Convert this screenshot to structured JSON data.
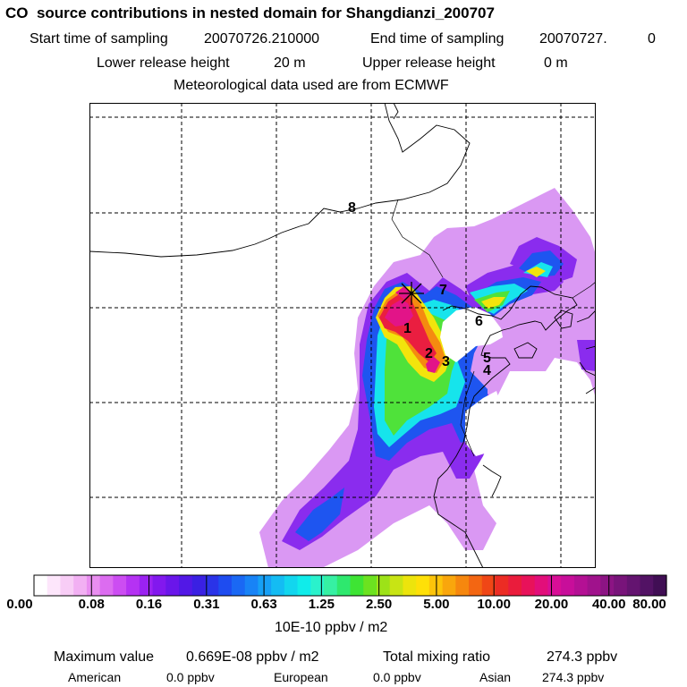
{
  "header": {
    "title": "CO  source contributions in nested domain for Shangdianzi_200707",
    "start_label": "Start time of sampling",
    "start_value": "20070726.210000",
    "end_label": "End time of sampling",
    "end_value": "20070727.",
    "end_extra": "0",
    "lower_label": "Lower release height",
    "lower_value": "20 m",
    "upper_label": "Upper release height",
    "upper_value": "0 m",
    "met_line": "Meteorological data used are from ECMWF"
  },
  "map": {
    "site_marker": "star-marker-icon",
    "labels": [
      "1",
      "2",
      "3",
      "4",
      "5",
      "6",
      "7",
      "8"
    ]
  },
  "colorbar": {
    "unit": "10E-10 ppbv / m2",
    "ticks": [
      "0.00",
      "0.08",
      "0.16",
      "0.31",
      "0.63",
      "1.25",
      "2.50",
      "5.00",
      "10.00",
      "20.00",
      "40.00",
      "80.00"
    ],
    "colors": [
      "#ffffff",
      "#fde6fb",
      "#f8cdf6",
      "#f2b0f3",
      "#e98ef0",
      "#dc6cf0",
      "#cc4df2",
      "#b532f3",
      "#9b22f1",
      "#8218ee",
      "#6a16ea",
      "#5218e6",
      "#3a20e3",
      "#2a33e8",
      "#1e4cf0",
      "#1a68f4",
      "#1883f6",
      "#16a0f6",
      "#14bcf3",
      "#12d6ee",
      "#10ecea",
      "#2af2cc",
      "#36f0a3",
      "#2ee86e",
      "#3ee434",
      "#6ce220",
      "#9de218",
      "#c8e414",
      "#ece40c",
      "#fee008",
      "#fcc40a",
      "#f9a60c",
      "#f6870e",
      "#f36612",
      "#f04616",
      "#ec2c24",
      "#ea1c3c",
      "#e8125a",
      "#e20e7a",
      "#d80e96",
      "#c80e9a",
      "#b41094",
      "#a0128c",
      "#8c1484",
      "#78147a",
      "#641470",
      "#521264",
      "#400e54"
    ]
  },
  "footer": {
    "max_label": "Maximum value",
    "max_value": "0.669E-08 ppbv / m2",
    "total_label": "Total mixing ratio",
    "total_value": "274.3 ppbv",
    "american_label": "American",
    "american_value": "0.0 ppbv",
    "european_label": "European",
    "european_value": "0.0 ppbv",
    "asian_label": "Asian",
    "asian_value": "274.3 ppbv"
  }
}
